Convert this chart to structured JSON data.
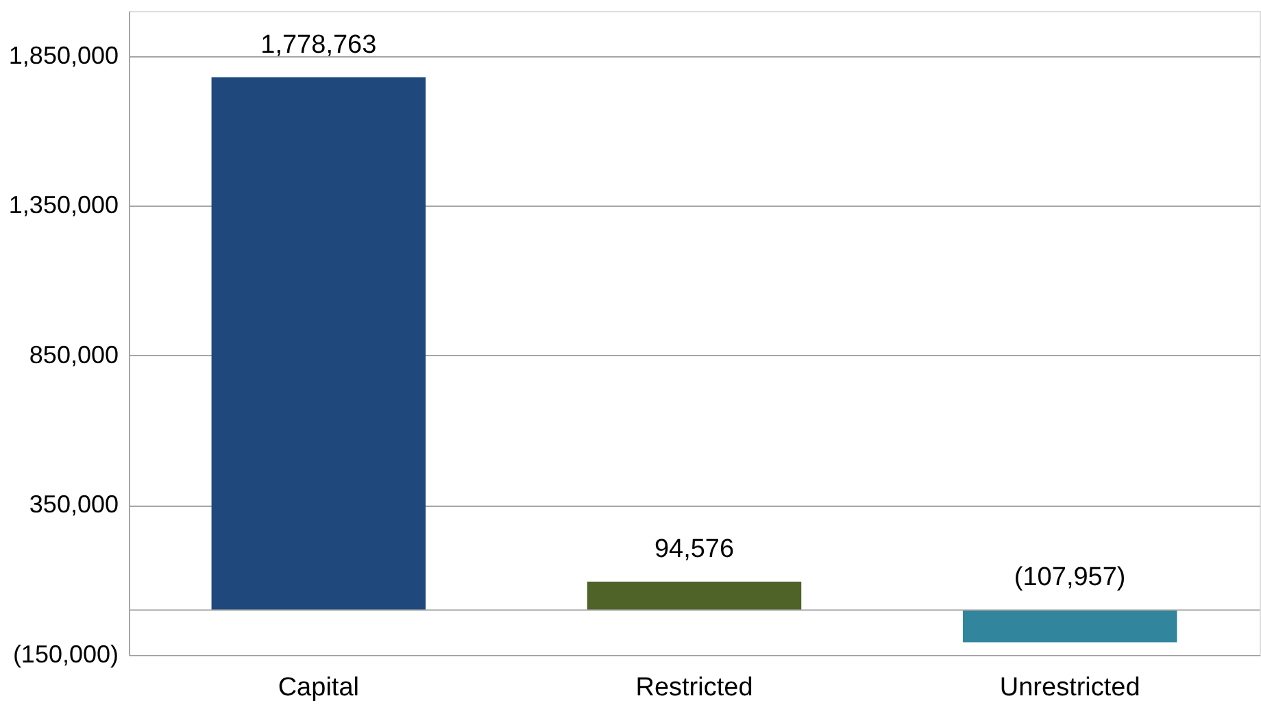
{
  "chart_data": {
    "type": "bar",
    "categories": [
      "Capital",
      "Restricted",
      "Unrestricted"
    ],
    "values": [
      1778763,
      94576,
      -107957
    ],
    "colors": [
      "#1f497d",
      "#4f6228",
      "#31859c"
    ],
    "ylim": [
      -150000,
      2000000
    ],
    "yticks": [
      {
        "value": -150000,
        "label": "(150,000)"
      },
      {
        "value": 350000,
        "label": "350,000"
      },
      {
        "value": 850000,
        "label": "850,000"
      },
      {
        "value": 1350000,
        "label": "1,350,000"
      },
      {
        "value": 1850000,
        "label": "1,850,000"
      }
    ],
    "value_labels": [
      "1,778,763",
      "94,576",
      "(107,957)"
    ],
    "ref_lines": [
      {
        "axis": "y",
        "value": 0,
        "color": "#a6a6a6"
      }
    ],
    "grid": "y"
  }
}
